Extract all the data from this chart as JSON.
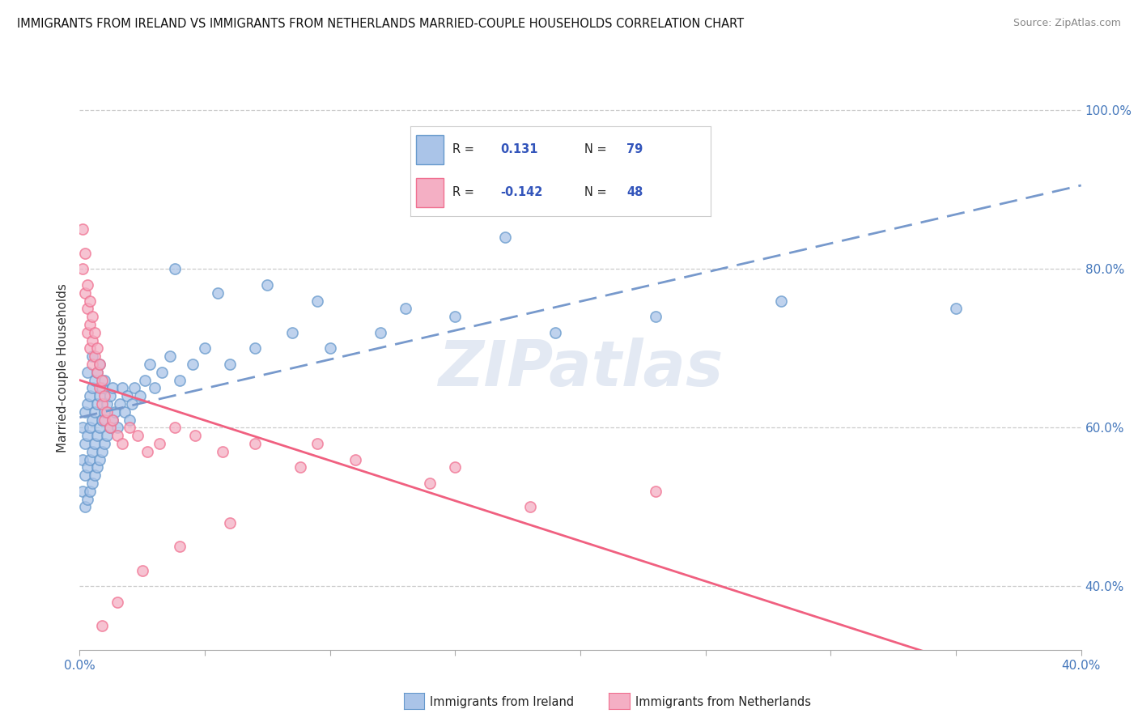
{
  "title": "IMMIGRANTS FROM IRELAND VS IMMIGRANTS FROM NETHERLANDS MARRIED-COUPLE HOUSEHOLDS CORRELATION CHART",
  "source": "Source: ZipAtlas.com",
  "ylabel": "Married-couple Households",
  "r_ireland": 0.131,
  "n_ireland": 79,
  "r_netherlands": -0.142,
  "n_netherlands": 48,
  "ireland_color": "#aac4e8",
  "netherlands_color": "#f4afc4",
  "ireland_edge_color": "#6699cc",
  "netherlands_edge_color": "#f07090",
  "trend_ireland_color": "#7799cc",
  "trend_netherlands_color": "#f06080",
  "watermark": "ZIPatlas",
  "x_min": 0.0,
  "x_max": 0.4,
  "y_min": 0.32,
  "y_max": 1.03,
  "ireland_x": [
    0.001,
    0.001,
    0.001,
    0.002,
    0.002,
    0.002,
    0.002,
    0.003,
    0.003,
    0.003,
    0.003,
    0.003,
    0.004,
    0.004,
    0.004,
    0.004,
    0.005,
    0.005,
    0.005,
    0.005,
    0.005,
    0.006,
    0.006,
    0.006,
    0.006,
    0.007,
    0.007,
    0.007,
    0.007,
    0.008,
    0.008,
    0.008,
    0.008,
    0.009,
    0.009,
    0.009,
    0.01,
    0.01,
    0.01,
    0.011,
    0.011,
    0.012,
    0.012,
    0.013,
    0.013,
    0.014,
    0.015,
    0.016,
    0.017,
    0.018,
    0.019,
    0.02,
    0.021,
    0.022,
    0.024,
    0.026,
    0.028,
    0.03,
    0.033,
    0.036,
    0.04,
    0.045,
    0.05,
    0.06,
    0.07,
    0.085,
    0.1,
    0.12,
    0.15,
    0.19,
    0.23,
    0.28,
    0.35,
    0.038,
    0.055,
    0.075,
    0.095,
    0.13,
    0.17
  ],
  "ireland_y": [
    0.52,
    0.56,
    0.6,
    0.5,
    0.54,
    0.58,
    0.62,
    0.51,
    0.55,
    0.59,
    0.63,
    0.67,
    0.52,
    0.56,
    0.6,
    0.64,
    0.53,
    0.57,
    0.61,
    0.65,
    0.69,
    0.54,
    0.58,
    0.62,
    0.66,
    0.55,
    0.59,
    0.63,
    0.67,
    0.56,
    0.6,
    0.64,
    0.68,
    0.57,
    0.61,
    0.65,
    0.58,
    0.62,
    0.66,
    0.59,
    0.63,
    0.6,
    0.64,
    0.61,
    0.65,
    0.62,
    0.6,
    0.63,
    0.65,
    0.62,
    0.64,
    0.61,
    0.63,
    0.65,
    0.64,
    0.66,
    0.68,
    0.65,
    0.67,
    0.69,
    0.66,
    0.68,
    0.7,
    0.68,
    0.7,
    0.72,
    0.7,
    0.72,
    0.74,
    0.72,
    0.74,
    0.76,
    0.75,
    0.8,
    0.77,
    0.78,
    0.76,
    0.75,
    0.84
  ],
  "netherlands_x": [
    0.001,
    0.001,
    0.002,
    0.002,
    0.003,
    0.003,
    0.003,
    0.004,
    0.004,
    0.004,
    0.005,
    0.005,
    0.005,
    0.006,
    0.006,
    0.007,
    0.007,
    0.008,
    0.008,
    0.009,
    0.009,
    0.01,
    0.01,
    0.011,
    0.012,
    0.013,
    0.015,
    0.017,
    0.02,
    0.023,
    0.027,
    0.032,
    0.038,
    0.046,
    0.057,
    0.07,
    0.088,
    0.11,
    0.14,
    0.18,
    0.23,
    0.15,
    0.095,
    0.06,
    0.04,
    0.025,
    0.015,
    0.009
  ],
  "netherlands_y": [
    0.85,
    0.8,
    0.82,
    0.77,
    0.78,
    0.75,
    0.72,
    0.76,
    0.73,
    0.7,
    0.74,
    0.71,
    0.68,
    0.72,
    0.69,
    0.7,
    0.67,
    0.68,
    0.65,
    0.66,
    0.63,
    0.64,
    0.61,
    0.62,
    0.6,
    0.61,
    0.59,
    0.58,
    0.6,
    0.59,
    0.57,
    0.58,
    0.6,
    0.59,
    0.57,
    0.58,
    0.55,
    0.56,
    0.53,
    0.5,
    0.52,
    0.55,
    0.58,
    0.48,
    0.45,
    0.42,
    0.38,
    0.35
  ]
}
